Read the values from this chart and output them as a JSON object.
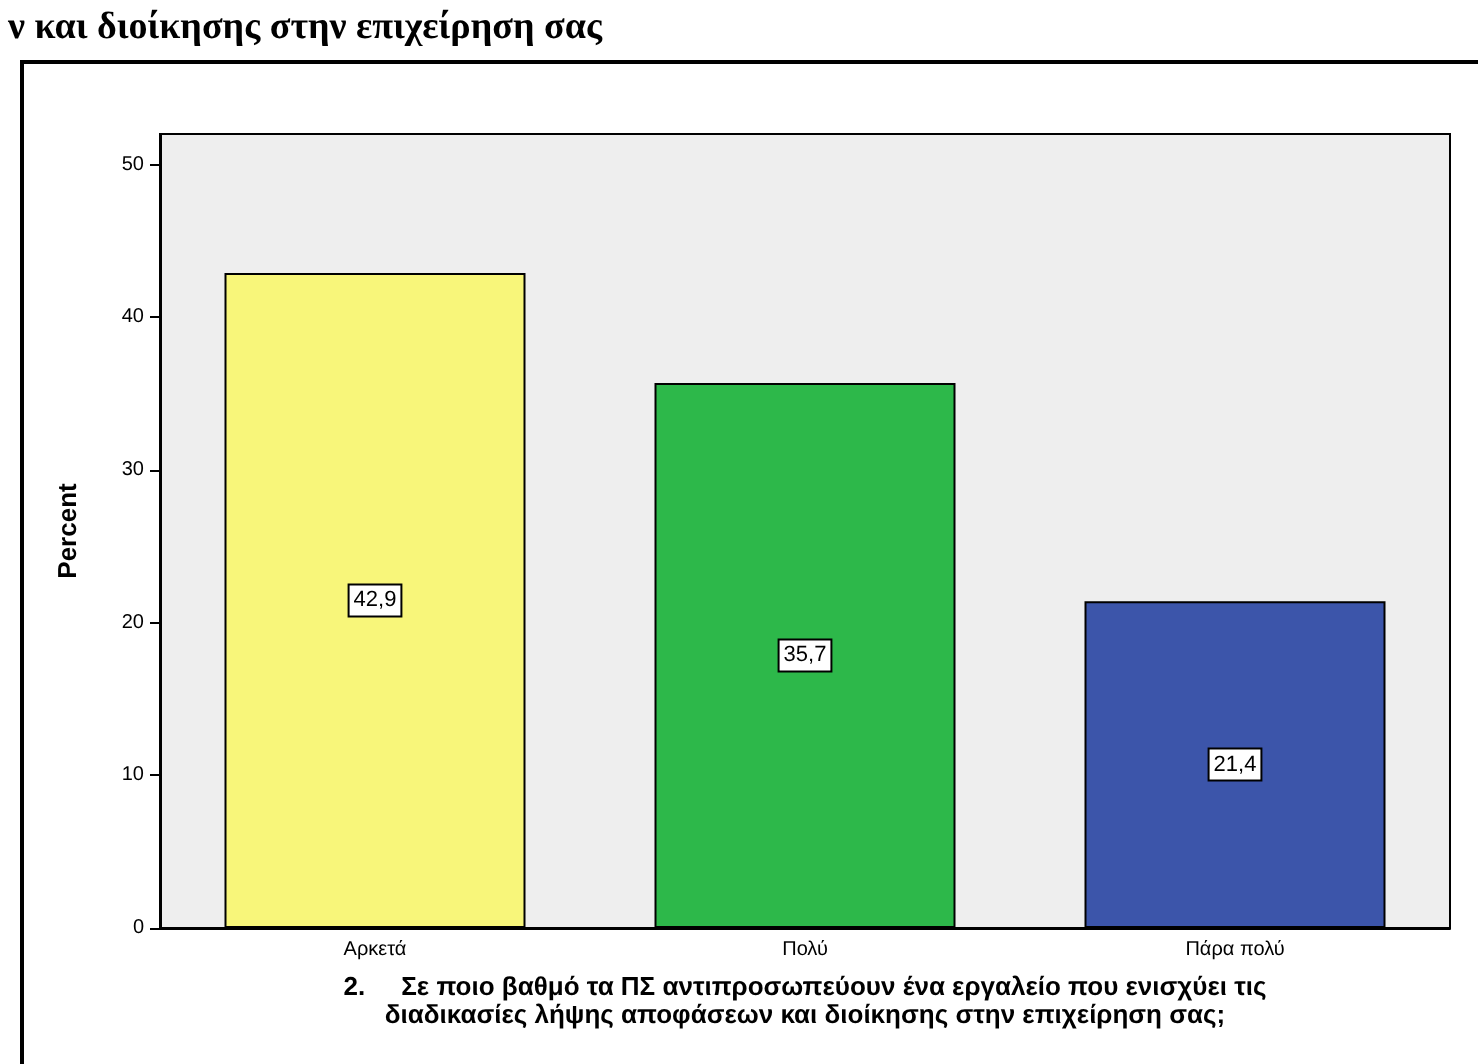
{
  "chart_data": {
    "type": "bar",
    "title": "ν και διοίκησης στην επιχείρηση σας",
    "xlabel": "2.     Σε ποιο βαθμό τα ΠΣ αντιπροσωπεύουν ένα εργαλείο που ενισχύει τις\nδιαδικασίες λήψης αποφάσεων και διοίκησης στην επιχείρηση σας;",
    "ylabel": "Percent",
    "categories": [
      "Αρκετά",
      "Πολύ",
      "Πάρα πολύ"
    ],
    "values": [
      42.9,
      35.7,
      21.4
    ],
    "value_labels": [
      "42,9",
      "35,7",
      "21,4"
    ],
    "colors": [
      "#f8f67a",
      "#2db84a",
      "#3c55aa"
    ],
    "ylim": [
      0,
      52
    ],
    "yticks": [
      0,
      10,
      20,
      30,
      40,
      50
    ],
    "grid": false
  }
}
